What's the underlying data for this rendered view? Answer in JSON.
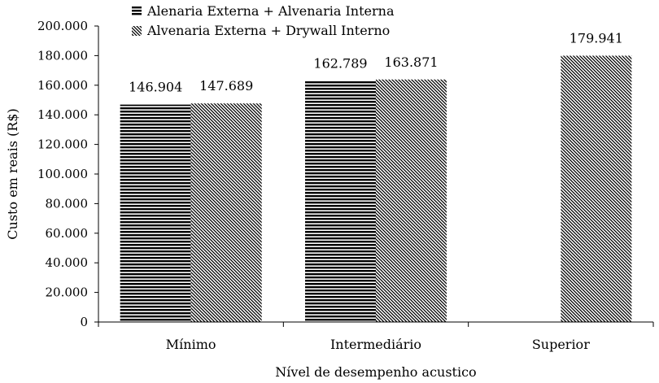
{
  "chart_data": {
    "type": "bar",
    "categories": [
      "Mínimo",
      "Intermediário",
      "Superior"
    ],
    "series": [
      {
        "name": "Alenaria Externa + Alvenaria Interna",
        "pattern": "horizontal",
        "values": [
          146904,
          162789,
          null
        ],
        "labels": [
          "146.904",
          "162.789",
          ""
        ]
      },
      {
        "name": "Alvenaria Externa + Drywall Interno",
        "pattern": "diagonal",
        "values": [
          147689,
          163871,
          179941
        ],
        "labels": [
          "147.689",
          "163.871",
          "179.941"
        ]
      }
    ],
    "ylim": [
      0,
      200000
    ],
    "yticks": [
      0,
      20000,
      40000,
      60000,
      80000,
      100000,
      120000,
      140000,
      160000,
      180000,
      200000
    ],
    "ytick_labels": [
      "0",
      "20.000",
      "40.000",
      "60.000",
      "80.000",
      "100.000",
      "120.000",
      "140.000",
      "160.000",
      "180.000",
      "200.000"
    ],
    "xlabel": "Nível de desempenho acustico",
    "ylabel": "Custo em reais (R$)",
    "title": "",
    "grid": false,
    "legend_position": "top-left"
  }
}
